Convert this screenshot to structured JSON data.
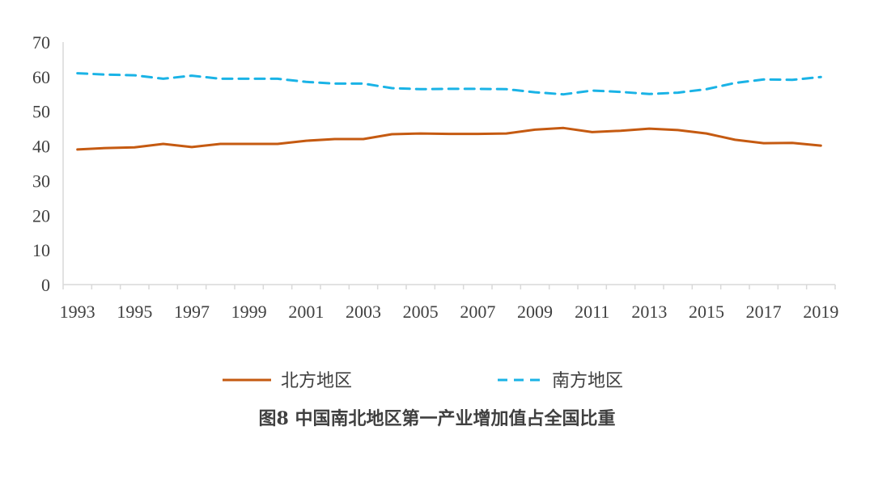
{
  "chart_data": {
    "type": "line",
    "title": "",
    "caption": "图8  中国南北地区第一产业增加值占全国比重",
    "xlabel": "",
    "ylabel": "",
    "ylim": [
      0,
      70
    ],
    "y_ticks": [
      "0",
      "10",
      "20",
      "30",
      "40",
      "50",
      "60",
      "70"
    ],
    "x": [
      1993,
      1994,
      1995,
      1996,
      1997,
      1998,
      1999,
      2000,
      2001,
      2002,
      2003,
      2004,
      2005,
      2006,
      2007,
      2008,
      2009,
      2010,
      2011,
      2012,
      2013,
      2014,
      2015,
      2016,
      2017,
      2018,
      2019
    ],
    "x_tick_labels": [
      "1993",
      "1995",
      "1997",
      "1999",
      "2001",
      "2003",
      "2005",
      "2007",
      "2009",
      "2011",
      "2013",
      "2015",
      "2017",
      "2019"
    ],
    "series": [
      {
        "name": "北方地区",
        "color": "#C55A11",
        "style": "solid",
        "values": [
          39.0,
          39.4,
          39.6,
          40.6,
          39.7,
          40.6,
          40.6,
          40.6,
          41.5,
          42.0,
          42.0,
          43.4,
          43.6,
          43.5,
          43.5,
          43.6,
          44.7,
          45.2,
          44.0,
          44.4,
          45.0,
          44.6,
          43.6,
          41.8,
          40.8,
          40.9,
          40.1
        ]
      },
      {
        "name": "南方地区",
        "color": "#1AB3E6",
        "style": "dashed",
        "values": [
          61.0,
          60.6,
          60.4,
          59.4,
          60.3,
          59.4,
          59.4,
          59.4,
          58.5,
          58.0,
          58.0,
          56.7,
          56.4,
          56.5,
          56.5,
          56.4,
          55.5,
          54.9,
          56.0,
          55.6,
          55.0,
          55.4,
          56.4,
          58.2,
          59.2,
          59.1,
          59.9
        ]
      }
    ],
    "legend": "bottom"
  }
}
